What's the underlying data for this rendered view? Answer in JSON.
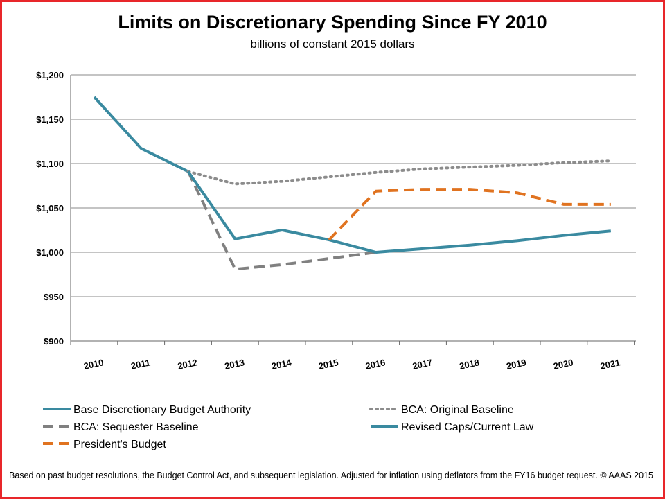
{
  "chart_data": {
    "type": "line",
    "title": "Limits on Discretionary Spending Since FY 2010",
    "subtitle": "billions of constant 2015 dollars",
    "xlabel": "",
    "ylabel": "",
    "categories": [
      "2010",
      "2011",
      "2012",
      "2013",
      "2014",
      "2015",
      "2016",
      "2017",
      "2018",
      "2019",
      "2020",
      "2021"
    ],
    "ylim": [
      900,
      1200
    ],
    "ytick_values": [
      900,
      950,
      1000,
      1050,
      1100,
      1150,
      1200
    ],
    "ytick_labels": [
      "$900",
      "$950",
      "$1,000",
      "$1,050",
      "$1,100",
      "$1,150",
      "$1,200"
    ],
    "grid": true,
    "legend_position": "bottom",
    "series": [
      {
        "name": "Base Discretionary Budget Authority",
        "style": "solid",
        "color": "#3a8aa0",
        "values": [
          1175,
          1117,
          1091,
          null,
          null,
          null,
          null,
          null,
          null,
          null,
          null,
          null
        ]
      },
      {
        "name": "BCA: Original Baseline",
        "style": "dotted",
        "color": "#8c8c8c",
        "values": [
          null,
          null,
          1091,
          1077,
          1080,
          1085,
          1090,
          1094,
          1096,
          1098,
          1101,
          1103
        ]
      },
      {
        "name": "BCA: Sequester Baseline",
        "style": "dashed",
        "color": "#808080",
        "values": [
          null,
          null,
          1091,
          981,
          986,
          993,
          1000,
          null,
          null,
          null,
          null,
          null
        ]
      },
      {
        "name": "Revised Caps/Current Law",
        "style": "solid",
        "color": "#3a8aa0",
        "values": [
          null,
          null,
          1091,
          1015,
          1025,
          1014,
          1000,
          1004,
          1008,
          1013,
          1019,
          1024
        ]
      },
      {
        "name": "President's Budget",
        "style": "dashed",
        "color": "#e07320",
        "values": [
          null,
          null,
          null,
          null,
          null,
          1014,
          1069,
          1071,
          1071,
          1067,
          1054,
          1054
        ]
      }
    ]
  },
  "footnote": "Based on past budget resolutions, the Budget Control Act, and subsequent legislation.  Adjusted for inflation using deflators from the FY16 budget request. © AAAS 2015"
}
